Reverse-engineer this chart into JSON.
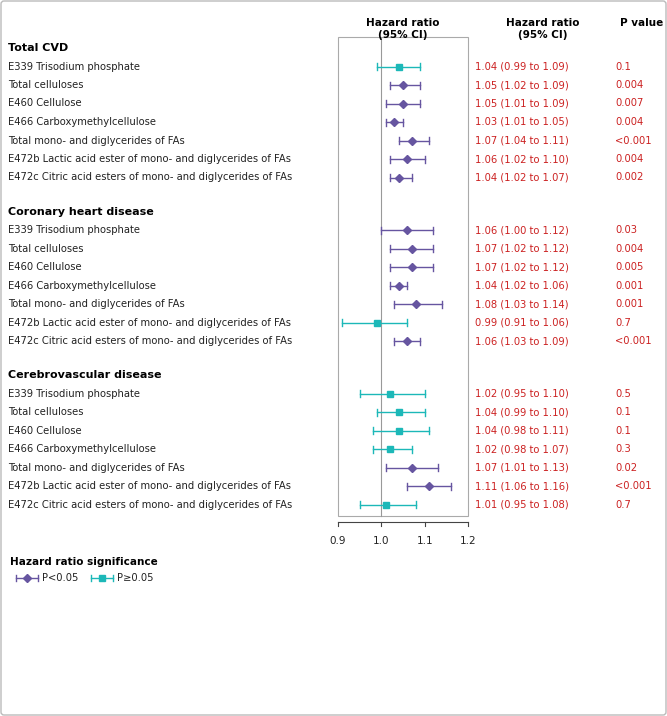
{
  "sections": [
    {
      "title": "Total CVD",
      "rows": [
        {
          "label": "E339 Trisodium phosphate",
          "hr": 1.04,
          "lo": 0.99,
          "hi": 1.09,
          "ci_text": "1.04 (0.99 to 1.09)",
          "p_text": "0.1",
          "sig": false
        },
        {
          "label": "Total celluloses",
          "hr": 1.05,
          "lo": 1.02,
          "hi": 1.09,
          "ci_text": "1.05 (1.02 to 1.09)",
          "p_text": "0.004",
          "sig": true
        },
        {
          "label": "E460 Cellulose",
          "hr": 1.05,
          "lo": 1.01,
          "hi": 1.09,
          "ci_text": "1.05 (1.01 to 1.09)",
          "p_text": "0.007",
          "sig": true
        },
        {
          "label": "E466 Carboxymethylcellulose",
          "hr": 1.03,
          "lo": 1.01,
          "hi": 1.05,
          "ci_text": "1.03 (1.01 to 1.05)",
          "p_text": "0.004",
          "sig": true
        },
        {
          "label": "Total mono- and diglycerides of FAs",
          "hr": 1.07,
          "lo": 1.04,
          "hi": 1.11,
          "ci_text": "1.07 (1.04 to 1.11)",
          "p_text": "<0.001",
          "sig": true
        },
        {
          "label": "E472b Lactic acid ester of mono- and diglycerides of FAs",
          "hr": 1.06,
          "lo": 1.02,
          "hi": 1.1,
          "ci_text": "1.06 (1.02 to 1.10)",
          "p_text": "0.004",
          "sig": true
        },
        {
          "label": "E472c Citric acid esters of mono- and diglycerides of FAs",
          "hr": 1.04,
          "lo": 1.02,
          "hi": 1.07,
          "ci_text": "1.04 (1.02 to 1.07)",
          "p_text": "0.002",
          "sig": true
        }
      ]
    },
    {
      "title": "Coronary heart disease",
      "rows": [
        {
          "label": "E339 Trisodium phosphate",
          "hr": 1.06,
          "lo": 1.0,
          "hi": 1.12,
          "ci_text": "1.06 (1.00 to 1.12)",
          "p_text": "0.03",
          "sig": true
        },
        {
          "label": "Total celluloses",
          "hr": 1.07,
          "lo": 1.02,
          "hi": 1.12,
          "ci_text": "1.07 (1.02 to 1.12)",
          "p_text": "0.004",
          "sig": true
        },
        {
          "label": "E460 Cellulose",
          "hr": 1.07,
          "lo": 1.02,
          "hi": 1.12,
          "ci_text": "1.07 (1.02 to 1.12)",
          "p_text": "0.005",
          "sig": true
        },
        {
          "label": "E466 Carboxymethylcellulose",
          "hr": 1.04,
          "lo": 1.02,
          "hi": 1.06,
          "ci_text": "1.04 (1.02 to 1.06)",
          "p_text": "0.001",
          "sig": true
        },
        {
          "label": "Total mono- and diglycerides of FAs",
          "hr": 1.08,
          "lo": 1.03,
          "hi": 1.14,
          "ci_text": "1.08 (1.03 to 1.14)",
          "p_text": "0.001",
          "sig": true
        },
        {
          "label": "E472b Lactic acid ester of mono- and diglycerides of FAs",
          "hr": 0.99,
          "lo": 0.91,
          "hi": 1.06,
          "ci_text": "0.99 (0.91 to 1.06)",
          "p_text": "0.7",
          "sig": false
        },
        {
          "label": "E472c Citric acid esters of mono- and diglycerides of FAs",
          "hr": 1.06,
          "lo": 1.03,
          "hi": 1.09,
          "ci_text": "1.06 (1.03 to 1.09)",
          "p_text": "<0.001",
          "sig": true
        }
      ]
    },
    {
      "title": "Cerebrovascular disease",
      "rows": [
        {
          "label": "E339 Trisodium phosphate",
          "hr": 1.02,
          "lo": 0.95,
          "hi": 1.1,
          "ci_text": "1.02 (0.95 to 1.10)",
          "p_text": "0.5",
          "sig": false
        },
        {
          "label": "Total celluloses",
          "hr": 1.04,
          "lo": 0.99,
          "hi": 1.1,
          "ci_text": "1.04 (0.99 to 1.10)",
          "p_text": "0.1",
          "sig": false
        },
        {
          "label": "E460 Cellulose",
          "hr": 1.04,
          "lo": 0.98,
          "hi": 1.11,
          "ci_text": "1.04 (0.98 to 1.11)",
          "p_text": "0.1",
          "sig": false
        },
        {
          "label": "E466 Carboxymethylcellulose",
          "hr": 1.02,
          "lo": 0.98,
          "hi": 1.07,
          "ci_text": "1.02 (0.98 to 1.07)",
          "p_text": "0.3",
          "sig": false
        },
        {
          "label": "Total mono- and diglycerides of FAs",
          "hr": 1.07,
          "lo": 1.01,
          "hi": 1.13,
          "ci_text": "1.07 (1.01 to 1.13)",
          "p_text": "0.02",
          "sig": true
        },
        {
          "label": "E472b Lactic acid ester of mono- and diglycerides of FAs",
          "hr": 1.11,
          "lo": 1.06,
          "hi": 1.16,
          "ci_text": "1.11 (1.06 to 1.16)",
          "p_text": "<0.001",
          "sig": true
        },
        {
          "label": "E472c Citric acid esters of mono- and diglycerides of FAs",
          "hr": 1.01,
          "lo": 0.95,
          "hi": 1.08,
          "ci_text": "1.01 (0.95 to 1.08)",
          "p_text": "0.7",
          "sig": false
        }
      ]
    }
  ],
  "col_header_forest": "Hazard ratio\n(95% CI)",
  "col_header_ci": "Hazard ratio\n(95% CI)",
  "col_header_p": "P value",
  "xmin": 0.9,
  "xmax": 1.2,
  "xticks": [
    0.9,
    1.0,
    1.1,
    1.2
  ],
  "color_sig": "#6655a0",
  "color_nonsig": "#1cb8b8",
  "text_color_label": "#222222",
  "text_color_data": "#cc2222",
  "text_color_title": "#000000",
  "legend_label_sig": "P<0.05",
  "legend_label_nonsig": "P≥0.05",
  "legend_title": "Hazard ratio significance",
  "label_fontsize": 7.2,
  "title_fontsize": 8.0,
  "header_fontsize": 7.5,
  "data_fontsize": 7.2
}
